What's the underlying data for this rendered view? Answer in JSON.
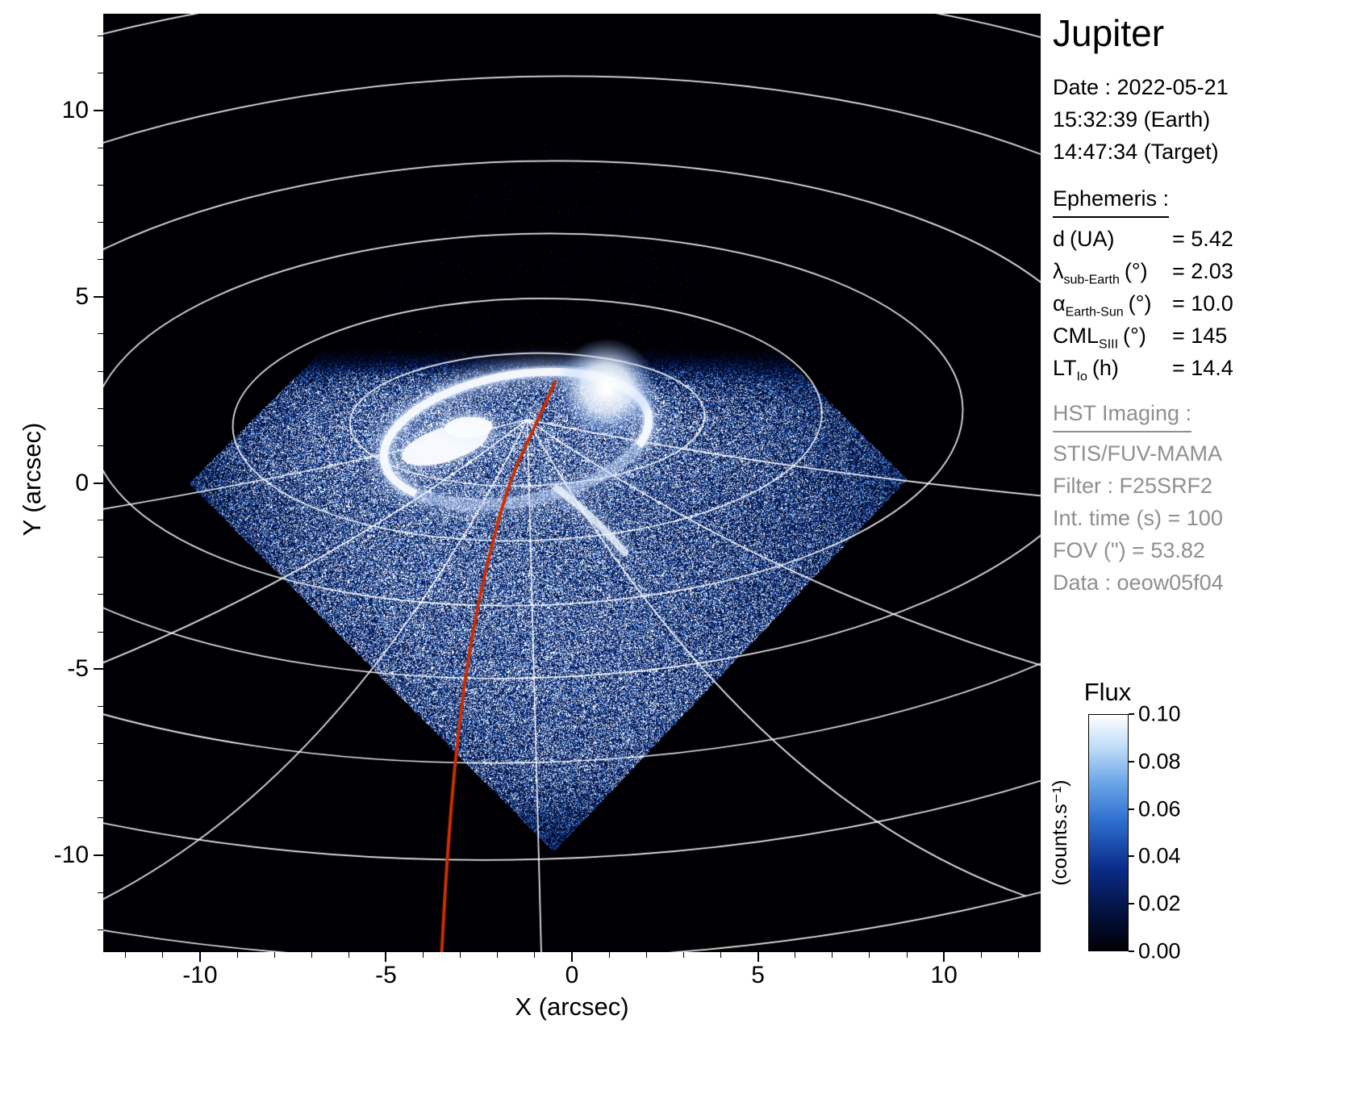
{
  "sidebar": {
    "title": "Jupiter",
    "datetime": {
      "date": "Date : 2022-05-21",
      "earth": "15:32:39 (Earth)",
      "target": "14:47:34 (Target)"
    },
    "ephemeris": {
      "heading": "Ephemeris :",
      "rows": [
        {
          "symbol": "d",
          "subscript": "",
          "unit": "(UA)",
          "value": "= 5.42"
        },
        {
          "symbol": "λ",
          "subscript": "sub-Earth",
          "unit": "(°)",
          "value": "= 2.03"
        },
        {
          "symbol": "α",
          "subscript": "Earth-Sun",
          "unit": "(°)",
          "value": "= 10.0"
        },
        {
          "symbol": "CML",
          "subscript": "SIII",
          "unit": "(°)",
          "value": "= 145"
        },
        {
          "symbol": "LT",
          "subscript": "Io",
          "unit": "(h)",
          "value": "= 14.4"
        }
      ]
    },
    "hst": {
      "heading": "HST Imaging :",
      "lines": [
        "STIS/FUV-MAMA",
        "Filter : F25SRF2",
        "Int. time (s) = 100",
        "FOV (\") = 53.82",
        "Data : oeow05f04"
      ]
    }
  },
  "chart_data": {
    "type": "heatmap",
    "title": "Jupiter",
    "xlabel": "X (arcsec)",
    "ylabel": "Y (arcsec)",
    "xlim": [
      -12.6,
      12.6
    ],
    "ylim": [
      -12.6,
      12.6
    ],
    "xticks": [
      -10,
      -5,
      0,
      5,
      10
    ],
    "yticks": [
      10,
      5,
      0,
      -5,
      -10
    ],
    "background_color": "#000000",
    "colorbar": {
      "title": "Flux",
      "unit_label": "(counts.s⁻¹)",
      "tick_labels": [
        "0.10",
        "0.08",
        "0.06",
        "0.04",
        "0.02",
        "0.00"
      ],
      "range": [
        0.0,
        0.1
      ],
      "colormap_stops": [
        [
          0.0,
          "#000004"
        ],
        [
          0.15,
          "#04103c"
        ],
        [
          0.35,
          "#0a2d8a"
        ],
        [
          0.55,
          "#2e6fd0"
        ],
        [
          0.72,
          "#6fa8e8"
        ],
        [
          0.85,
          "#b9d9f7"
        ],
        [
          1.0,
          "#ffffff"
        ]
      ]
    },
    "graticule": {
      "color": "#ffffff",
      "rotation_deg": -1.5,
      "pole_arcsec": [
        -1.2,
        1.7
      ],
      "lat_circles_arcsec": [
        [
          4.77,
          1.78
        ],
        [
          7.92,
          3.25
        ],
        [
          11.71,
          4.99
        ],
        [
          15.83,
          6.94
        ],
        [
          20.6,
          9.21
        ],
        [
          25.8,
          11.81
        ],
        [
          30.9,
          14.5
        ]
      ],
      "meridian_angles_deg": [
        15,
        40,
        65,
        90,
        115,
        140,
        165
      ]
    },
    "detector_footprint": {
      "fov_arcsec": 53.82,
      "vertices_arcsec": [
        [
          -0.6,
          9.7
        ],
        [
          9.0,
          0.1
        ],
        [
          -0.5,
          -9.9
        ],
        [
          -10.3,
          0.0
        ]
      ]
    },
    "aurora_oval": {
      "center_arcsec": [
        -1.5,
        1.2
      ],
      "semi_axes_arcsec": [
        3.6,
        1.7
      ],
      "rotation_deg": -10
    },
    "io_footprint_track": {
      "color": "#cc2e00",
      "points_arcsec": [
        [
          -0.45,
          2.7
        ],
        [
          -1.1,
          1.3
        ],
        [
          -1.7,
          0.0
        ],
        [
          -2.3,
          -2.2
        ],
        [
          -2.75,
          -4.4
        ],
        [
          -3.05,
          -6.6
        ],
        [
          -3.25,
          -8.7
        ],
        [
          -3.4,
          -10.8
        ],
        [
          -3.5,
          -12.6
        ]
      ]
    }
  }
}
